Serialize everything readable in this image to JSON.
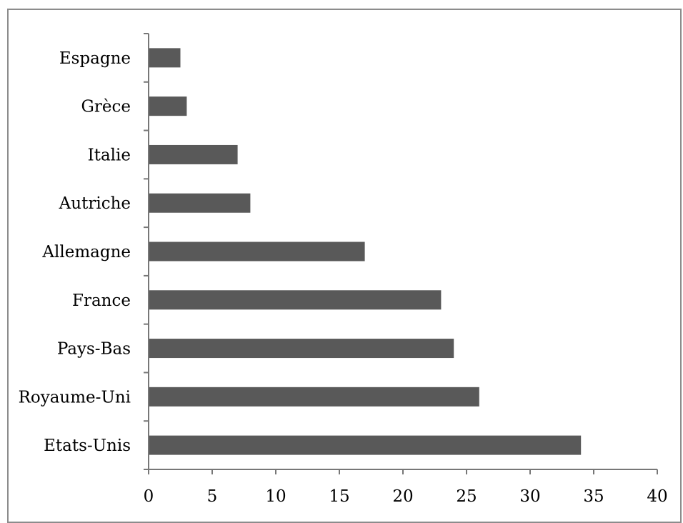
{
  "chart_data": {
    "type": "bar",
    "orientation": "horizontal",
    "title": "",
    "xlabel": "",
    "ylabel": "",
    "categories": [
      "Espagne",
      "Grèce",
      "Italie",
      "Autriche",
      "Allemagne",
      "France",
      "Pays-Bas",
      "Royaume-Uni",
      "Etats-Unis"
    ],
    "values": [
      2.5,
      3,
      7,
      8,
      17,
      23,
      24,
      26,
      34
    ],
    "xlim": [
      0,
      40
    ],
    "xticks": [
      0,
      5,
      10,
      15,
      20,
      25,
      30,
      35,
      40
    ],
    "grid": false,
    "legend": "none",
    "colors": {
      "bar": "#595959",
      "axis": "#777777",
      "frame": "#8c8c8c"
    }
  }
}
